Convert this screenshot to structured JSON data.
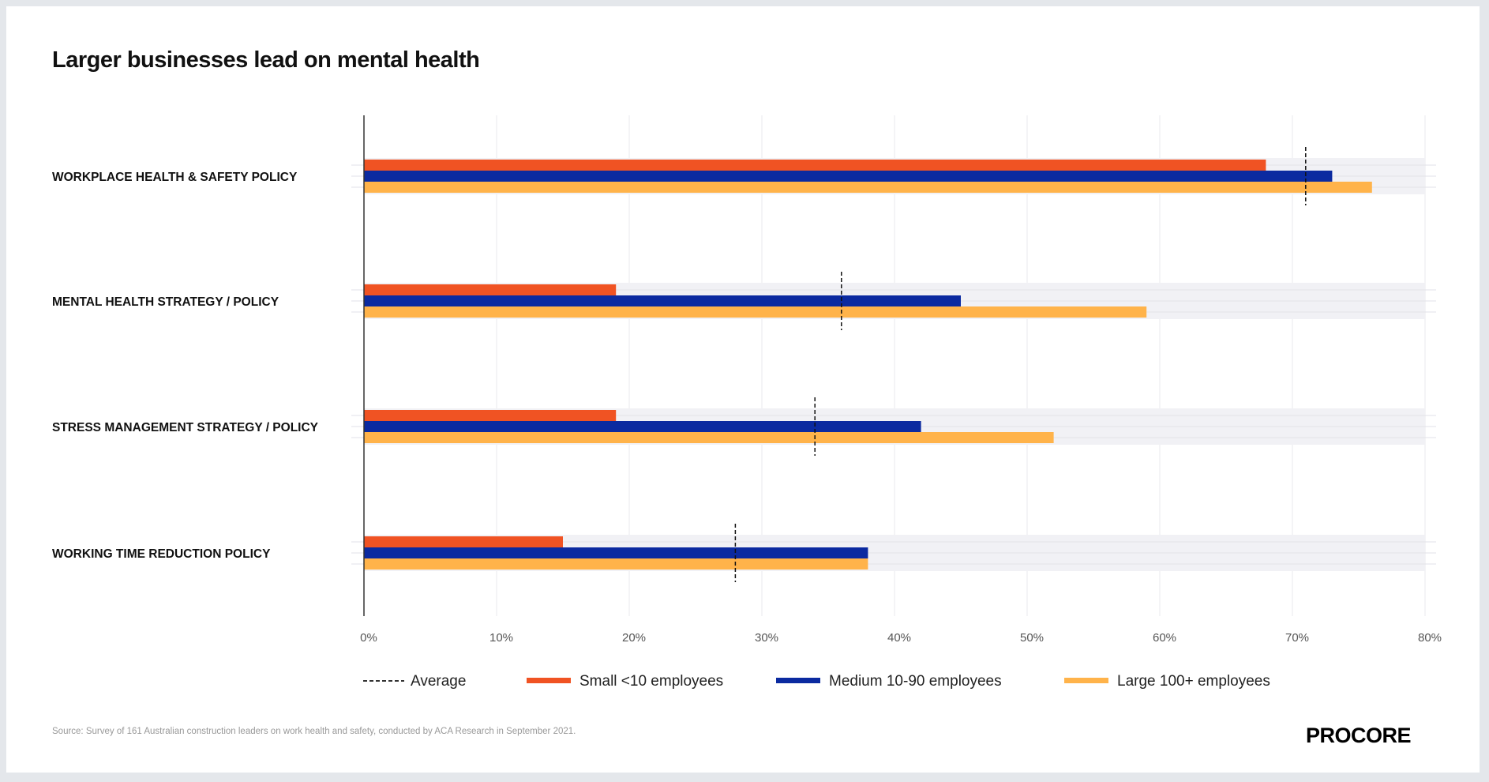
{
  "chart_data": {
    "type": "bar",
    "orientation": "horizontal",
    "title": "Larger businesses lead on mental health",
    "categories": [
      "WORKPLACE HEALTH & SAFETY POLICY",
      "MENTAL HEALTH STRATEGY / POLICY",
      "STRESS MANAGEMENT STRATEGY / POLICY",
      "WORKING TIME REDUCTION POLICY"
    ],
    "series": [
      {
        "name": "Small <10 employees",
        "color": "#f05323",
        "values": [
          68,
          19,
          19,
          15
        ]
      },
      {
        "name": "Medium 10-90 employees",
        "color": "#0b2aa0",
        "values": [
          73,
          45,
          42,
          38
        ]
      },
      {
        "name": "Large 100+ employees",
        "color": "#ffb34a",
        "values": [
          76,
          59,
          52,
          38
        ]
      }
    ],
    "average": {
      "name": "Average",
      "values": [
        71,
        36,
        34,
        28
      ]
    },
    "xlim": [
      0,
      80
    ],
    "xticks": [
      "0%",
      "10%",
      "20%",
      "30%",
      "40%",
      "50%",
      "60%",
      "70%",
      "80%"
    ],
    "grid": true,
    "legend_placement": "bottom"
  },
  "source": "Source: Survey of 161 Australian construction leaders on work health and safety, conducted by ACA Research in September 2021.",
  "logo": "PROCORE"
}
